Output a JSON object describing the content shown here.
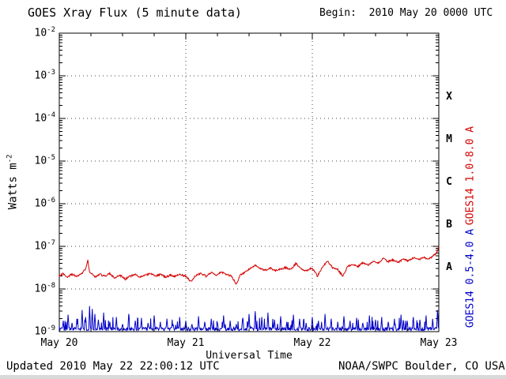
{
  "footer": {
    "updated": "Updated 2010 May 22 22:00:12 UTC",
    "credit": "NOAA/SWPC Boulder, CO USA"
  },
  "chart_data": {
    "type": "line",
    "title": "GOES Xray Flux (5 minute data)",
    "begin_label": "Begin:  2010 May 20 0000 UTC",
    "xlabel": "Universal Time",
    "ylabel_base": "Watts m",
    "ylabel_sup": "-2",
    "x_range_days": [
      0,
      3
    ],
    "x_ticks": [
      "May 20",
      "May 21",
      "May 22",
      "May 23"
    ],
    "y_log_range": [
      -9,
      -2
    ],
    "y_tick_exponents": [
      -2,
      -3,
      -4,
      -5,
      -6,
      -7,
      -8,
      -9
    ],
    "grid": {
      "h_decades": [
        -3,
        -4,
        -5,
        -6,
        -7,
        -8
      ],
      "v_days": [
        1,
        2
      ]
    },
    "flux_classes": [
      {
        "label": "X",
        "band": [
          -4,
          -3
        ]
      },
      {
        "label": "M",
        "band": [
          -5,
          -4
        ]
      },
      {
        "label": "C",
        "band": [
          -6,
          -5
        ]
      },
      {
        "label": "B",
        "band": [
          -7,
          -6
        ]
      },
      {
        "label": "A",
        "band": [
          -8,
          -7
        ]
      }
    ],
    "samples_per_day": 288,
    "series": [
      {
        "name": "GOES14 1.0-8.0 A",
        "color": "#d40000",
        "points": [
          [
            0.0,
            2e-08
          ],
          [
            0.03,
            2.3e-08
          ],
          [
            0.06,
            1.9e-08
          ],
          [
            0.1,
            2.2e-08
          ],
          [
            0.14,
            2e-08
          ],
          [
            0.18,
            2.4e-08
          ],
          [
            0.21,
            3e-08
          ],
          [
            0.225,
            4.8e-08
          ],
          [
            0.24,
            2.5e-08
          ],
          [
            0.28,
            1.9e-08
          ],
          [
            0.32,
            2.2e-08
          ],
          [
            0.36,
            2e-08
          ],
          [
            0.4,
            2.3e-08
          ],
          [
            0.44,
            1.8e-08
          ],
          [
            0.48,
            2.1e-08
          ],
          [
            0.52,
            1.7e-08
          ],
          [
            0.56,
            2e-08
          ],
          [
            0.6,
            2.2e-08
          ],
          [
            0.64,
            1.9e-08
          ],
          [
            0.68,
            2.1e-08
          ],
          [
            0.72,
            2.3e-08
          ],
          [
            0.76,
            2e-08
          ],
          [
            0.8,
            2.2e-08
          ],
          [
            0.84,
            1.9e-08
          ],
          [
            0.88,
            2.1e-08
          ],
          [
            0.92,
            2e-08
          ],
          [
            0.96,
            2.2e-08
          ],
          [
            1.0,
            2e-08
          ],
          [
            1.04,
            1.5e-08
          ],
          [
            1.08,
            2.1e-08
          ],
          [
            1.12,
            2.3e-08
          ],
          [
            1.16,
            2e-08
          ],
          [
            1.2,
            2.4e-08
          ],
          [
            1.24,
            2.1e-08
          ],
          [
            1.28,
            2.5e-08
          ],
          [
            1.32,
            2.2e-08
          ],
          [
            1.36,
            2e-08
          ],
          [
            1.4,
            1.3e-08
          ],
          [
            1.43,
            2.1e-08
          ],
          [
            1.47,
            2.5e-08
          ],
          [
            1.51,
            3.1e-08
          ],
          [
            1.55,
            3.6e-08
          ],
          [
            1.59,
            3e-08
          ],
          [
            1.63,
            2.8e-08
          ],
          [
            1.67,
            3.1e-08
          ],
          [
            1.71,
            2.7e-08
          ],
          [
            1.75,
            2.9e-08
          ],
          [
            1.79,
            3.2e-08
          ],
          [
            1.83,
            2.8e-08
          ],
          [
            1.87,
            4e-08
          ],
          [
            1.91,
            3e-08
          ],
          [
            1.95,
            2.7e-08
          ],
          [
            2.0,
            3.1e-08
          ],
          [
            2.04,
            2e-08
          ],
          [
            2.08,
            3.3e-08
          ],
          [
            2.12,
            4.6e-08
          ],
          [
            2.16,
            3.2e-08
          ],
          [
            2.2,
            2.9e-08
          ],
          [
            2.24,
            2e-08
          ],
          [
            2.28,
            3.4e-08
          ],
          [
            2.32,
            3.8e-08
          ],
          [
            2.36,
            3.3e-08
          ],
          [
            2.4,
            4.2e-08
          ],
          [
            2.44,
            3.6e-08
          ],
          [
            2.48,
            4.5e-08
          ],
          [
            2.52,
            4e-08
          ],
          [
            2.56,
            5.2e-08
          ],
          [
            2.6,
            4.4e-08
          ],
          [
            2.64,
            4.8e-08
          ],
          [
            2.68,
            4.2e-08
          ],
          [
            2.72,
            5e-08
          ],
          [
            2.76,
            4.6e-08
          ],
          [
            2.8,
            5.4e-08
          ],
          [
            2.84,
            4.8e-08
          ],
          [
            2.88,
            5.6e-08
          ],
          [
            2.92,
            5e-08
          ],
          [
            2.96,
            6.2e-08
          ],
          [
            2.985,
            7e-08
          ],
          [
            3.0,
            1.05e-07
          ]
        ]
      },
      {
        "name": "GOES14 0.5-4.0 A",
        "color": "#0000c8",
        "baseline": 1.15e-09,
        "spikes": [
          [
            0.03,
            1.8e-09
          ],
          [
            0.07,
            2.5e-09
          ],
          [
            0.1,
            1.6e-09
          ],
          [
            0.14,
            2e-09
          ],
          [
            0.18,
            3.2e-09
          ],
          [
            0.21,
            2.2e-09
          ],
          [
            0.24,
            4e-09
          ],
          [
            0.26,
            3.4e-09
          ],
          [
            0.28,
            2.6e-09
          ],
          [
            0.31,
            1.9e-09
          ],
          [
            0.35,
            2.8e-09
          ],
          [
            0.4,
            1.7e-09
          ],
          [
            0.45,
            2.2e-09
          ],
          [
            0.5,
            1.5e-09
          ],
          [
            0.55,
            2.6e-09
          ],
          [
            0.6,
            1.8e-09
          ],
          [
            0.65,
            2.1e-09
          ],
          [
            0.7,
            1.6e-09
          ],
          [
            0.75,
            2.4e-09
          ],
          [
            0.8,
            1.7e-09
          ],
          [
            0.85,
            2e-09
          ],
          [
            0.9,
            1.5e-09
          ],
          [
            0.95,
            2.2e-09
          ],
          [
            1.0,
            1.8e-09
          ],
          [
            1.05,
            1.5e-09
          ],
          [
            1.1,
            2.3e-09
          ],
          [
            1.15,
            1.7e-09
          ],
          [
            1.2,
            2e-09
          ],
          [
            1.25,
            1.6e-09
          ],
          [
            1.3,
            2.4e-09
          ],
          [
            1.35,
            1.8e-09
          ],
          [
            1.4,
            1.5e-09
          ],
          [
            1.45,
            2.1e-09
          ],
          [
            1.5,
            2.6e-09
          ],
          [
            1.55,
            3e-09
          ],
          [
            1.6,
            2.2e-09
          ],
          [
            1.65,
            2.8e-09
          ],
          [
            1.7,
            1.9e-09
          ],
          [
            1.75,
            2.3e-09
          ],
          [
            1.8,
            1.7e-09
          ],
          [
            1.85,
            2.5e-09
          ],
          [
            1.9,
            2e-09
          ],
          [
            1.95,
            1.6e-09
          ],
          [
            2.0,
            2.2e-09
          ],
          [
            2.05,
            1.8e-09
          ],
          [
            2.1,
            2.6e-09
          ],
          [
            2.15,
            2e-09
          ],
          [
            2.2,
            1.7e-09
          ],
          [
            2.25,
            2.3e-09
          ],
          [
            2.3,
            1.8e-09
          ],
          [
            2.35,
            2.1e-09
          ],
          [
            2.4,
            1.6e-09
          ],
          [
            2.45,
            2.4e-09
          ],
          [
            2.5,
            1.9e-09
          ],
          [
            2.55,
            2.2e-09
          ],
          [
            2.6,
            1.7e-09
          ],
          [
            2.65,
            2e-09
          ],
          [
            2.7,
            2.5e-09
          ],
          [
            2.75,
            1.8e-09
          ],
          [
            2.8,
            2.2e-09
          ],
          [
            2.85,
            1.9e-09
          ],
          [
            2.9,
            2.4e-09
          ],
          [
            2.95,
            2e-09
          ],
          [
            2.99,
            3.2e-09
          ]
        ]
      }
    ]
  }
}
